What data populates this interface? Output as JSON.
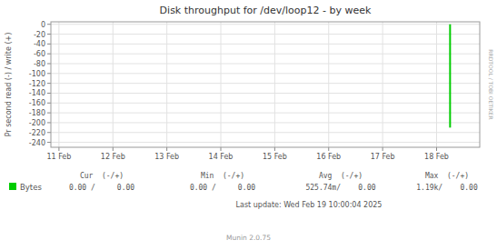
{
  "chart_data": {
    "type": "line",
    "title": "Disk throughput for /dev/loop12 - by week",
    "y_label": "Pr second read (-) / write (+)",
    "series": [
      {
        "name": "Bytes",
        "color": "#00cc00",
        "x": [
          7.25,
          7.25
        ],
        "values": [
          0,
          -210
        ]
      }
    ],
    "xlim": [
      -0.15,
      7.8
    ],
    "xticks": [
      {
        "value": 0,
        "label": "11 Feb"
      },
      {
        "value": 1,
        "label": "12 Feb"
      },
      {
        "value": 2,
        "label": "13 Feb"
      },
      {
        "value": 3,
        "label": "14 Feb"
      },
      {
        "value": 4,
        "label": "15 Feb"
      },
      {
        "value": 5,
        "label": "16 Feb"
      },
      {
        "value": 6,
        "label": "17 Feb"
      },
      {
        "value": 7,
        "label": "18 Feb"
      }
    ],
    "ylim": [
      -250,
      5
    ],
    "yticks": [
      0,
      -20,
      -40,
      -60,
      -80,
      -100,
      -120,
      -140,
      -160,
      -180,
      -200,
      -220,
      -240
    ],
    "grid": true,
    "legend": "bottom",
    "table": {
      "columns": [
        "Cur  (-/+)",
        "Min  (-/+)",
        "Avg  (-/+)",
        "Max  (-/+)"
      ],
      "values": [
        "0.00 /     0.00",
        "0.00 /     0.00",
        "525.74m/    0.00",
        "1.19k/    0.00"
      ]
    },
    "annotations": [
      "Last update: Wed Feb 19 10:00:04 2025",
      "Munin 2.0.75",
      "RRDTOOL / TOBI OETIKER"
    ]
  }
}
